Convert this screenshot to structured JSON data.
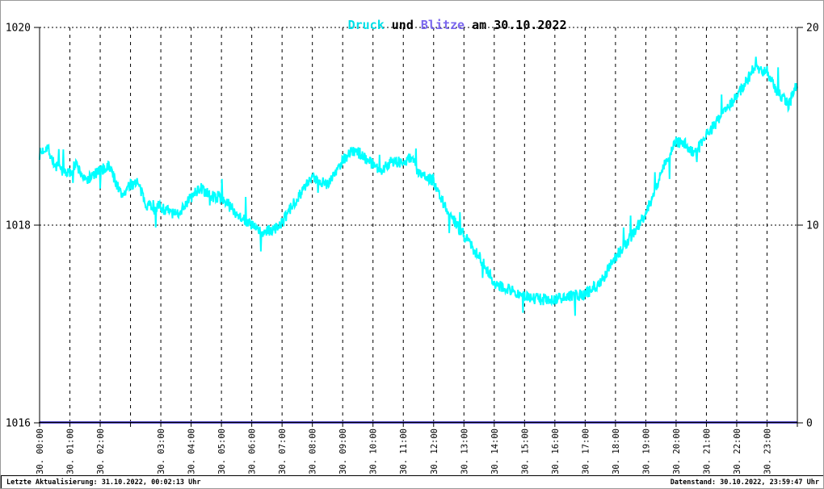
{
  "title": {
    "druck": "Druck",
    "und": " und ",
    "blitze": "Blitze",
    "date": " am 30.10.2022"
  },
  "colors": {
    "pressure_line": "#00ffff",
    "pressure_title": "#00e0e8",
    "lightning_line": "#5b51c8",
    "lightning_title": "#7b68ee",
    "axis": "#000000",
    "page_border": "#9a9a9a"
  },
  "footer": {
    "left": "Letzte Aktualisierung: 31.10.2022, 00:02:13 Uhr",
    "right": "Datenstand: 30.10.2022, 23:59:47 Uhr"
  },
  "chart_data": {
    "type": "line",
    "title": "Druck und Blitze am 30.10.2022",
    "left_axis": {
      "ticks": [
        "1020",
        "1018",
        "1016"
      ],
      "range": [
        1016,
        1020
      ],
      "series": "Druck",
      "grid": "dotted horizontal at 1018 and 1020"
    },
    "right_axis": {
      "ticks": [
        "20",
        "10",
        "0"
      ],
      "range": [
        0,
        20
      ],
      "series": "Blitze"
    },
    "x_slots": [
      "30. 00:00",
      "30. 01:00",
      "30. 02:00",
      null,
      "30. 03:00",
      "30. 04:00",
      "30. 05:00",
      "30. 06:00",
      "30. 07:00",
      "30. 08:00",
      "30. 09:00",
      "30. 10:00",
      "30. 11:00",
      "30. 12:00",
      "30. 13:00",
      "30. 14:00",
      "30. 15:00",
      "30. 16:00",
      "30. 17:00",
      "30. 18:00",
      "30. 19:00",
      "30. 20:00",
      "30. 21:00",
      "30. 22:00",
      "30. 23:00"
    ],
    "x_note": "25 hourly slots on 30.10.2022 (DST fall-back day: the hour 02:00-03:00 occurs twice; the 4th gridline is the repeated unlabeled hour). Labels rotated 90 degrees.",
    "series": [
      {
        "name": "Druck",
        "axis": "left",
        "color": "#00ffff",
        "anchors_slot_hpa": [
          [
            0,
            1018.72
          ],
          [
            0.25,
            1018.8
          ],
          [
            0.5,
            1018.6
          ],
          [
            1,
            1018.52
          ],
          [
            1.2,
            1018.62
          ],
          [
            1.5,
            1018.45
          ],
          [
            2,
            1018.55
          ],
          [
            2.3,
            1018.6
          ],
          [
            2.7,
            1018.3
          ],
          [
            3,
            1018.4
          ],
          [
            3.2,
            1018.45
          ],
          [
            3.5,
            1018.22
          ],
          [
            4,
            1018.18
          ],
          [
            4.5,
            1018.1
          ],
          [
            5,
            1018.28
          ],
          [
            5.3,
            1018.38
          ],
          [
            5.6,
            1018.3
          ],
          [
            6,
            1018.28
          ],
          [
            6.5,
            1018.12
          ],
          [
            7,
            1018.0
          ],
          [
            7.3,
            1017.92
          ],
          [
            7.7,
            1017.95
          ],
          [
            8,
            1018.02
          ],
          [
            8.5,
            1018.28
          ],
          [
            9,
            1018.48
          ],
          [
            9.5,
            1018.42
          ],
          [
            9.8,
            1018.55
          ],
          [
            10,
            1018.66
          ],
          [
            10.3,
            1018.75
          ],
          [
            10.6,
            1018.72
          ],
          [
            11,
            1018.62
          ],
          [
            11.3,
            1018.55
          ],
          [
            11.6,
            1018.66
          ],
          [
            12,
            1018.62
          ],
          [
            12.3,
            1018.7
          ],
          [
            12.5,
            1018.52
          ],
          [
            13,
            1018.45
          ],
          [
            13.4,
            1018.18
          ],
          [
            13.8,
            1017.98
          ],
          [
            14,
            1017.9
          ],
          [
            14.5,
            1017.68
          ],
          [
            15,
            1017.42
          ],
          [
            15.5,
            1017.35
          ],
          [
            16,
            1017.28
          ],
          [
            16.5,
            1017.25
          ],
          [
            17,
            1017.25
          ],
          [
            17.5,
            1017.28
          ],
          [
            18,
            1017.3
          ],
          [
            18.5,
            1017.42
          ],
          [
            19,
            1017.68
          ],
          [
            19.5,
            1017.88
          ],
          [
            20,
            1018.12
          ],
          [
            20.3,
            1018.35
          ],
          [
            20.6,
            1018.6
          ],
          [
            20.8,
            1018.72
          ],
          [
            21,
            1018.85
          ],
          [
            21.3,
            1018.82
          ],
          [
            21.6,
            1018.72
          ],
          [
            22,
            1018.9
          ],
          [
            22.5,
            1019.12
          ],
          [
            23,
            1019.3
          ],
          [
            23.3,
            1019.45
          ],
          [
            23.6,
            1019.6
          ],
          [
            24,
            1019.55
          ],
          [
            24.4,
            1019.32
          ],
          [
            24.7,
            1019.22
          ],
          [
            25,
            1019.42
          ]
        ]
      },
      {
        "name": "Blitze",
        "axis": "right",
        "color": "#5b51c8",
        "constant_value": 0
      }
    ],
    "noise": {
      "amplitude": 0.06,
      "spike_chance": 0.02,
      "spike_min": 0.1,
      "spike_extra": 0.16,
      "seed": 7,
      "points_per_slot": 60
    }
  }
}
